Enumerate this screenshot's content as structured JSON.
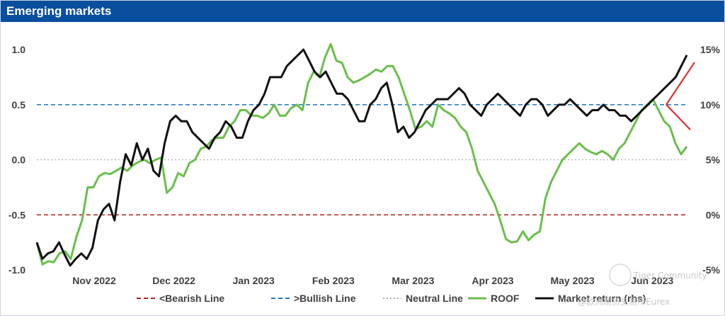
{
  "header": {
    "title": "Emerging markets"
  },
  "chart_data": {
    "type": "line",
    "title": "Emerging markets",
    "left_axis": {
      "ticks": [
        "1.0",
        "0.5",
        "0.0",
        "-0.5",
        "-1.0"
      ],
      "range": [
        -1.0,
        1.0
      ]
    },
    "right_axis": {
      "ticks": [
        "15%",
        "10%",
        "5%",
        "0%",
        "-5%"
      ],
      "range": [
        -5,
        15
      ]
    },
    "x_ticks": [
      "Nov 2022",
      "Dec 2022",
      "Jan 2023",
      "Feb 2023",
      "Mar 2023",
      "Apr 2023",
      "May 2023",
      "Jun 2023"
    ],
    "reference_lines": [
      {
        "name": "<Bearish Line",
        "value": -0.5,
        "color": "#b22222",
        "style": "dashed"
      },
      {
        "name": ">Bullish Line",
        "value": 0.5,
        "color": "#1f77c4",
        "style": "dashed"
      },
      {
        "name": "Neutral Line",
        "value": 0.0,
        "color": "#b0b0b0",
        "style": "dotted"
      }
    ],
    "series": [
      {
        "name": "ROOF",
        "axis": "left",
        "color": "#6abf4b",
        "values": [
          -0.75,
          -0.95,
          -0.92,
          -0.93,
          -0.85,
          -0.83,
          -0.9,
          -0.7,
          -0.55,
          -0.25,
          -0.25,
          -0.15,
          -0.12,
          -0.13,
          -0.1,
          -0.07,
          -0.1,
          -0.05,
          -0.02,
          0.0,
          -0.03,
          0.0,
          0.02,
          -0.3,
          -0.25,
          -0.12,
          -0.15,
          -0.03,
          0.0,
          0.1,
          0.12,
          0.18,
          0.2,
          0.2,
          0.3,
          0.35,
          0.45,
          0.45,
          0.4,
          0.4,
          0.38,
          0.42,
          0.5,
          0.4,
          0.4,
          0.47,
          0.5,
          0.45,
          0.7,
          0.8,
          0.75,
          0.93,
          1.05,
          0.9,
          0.88,
          0.75,
          0.7,
          0.72,
          0.75,
          0.78,
          0.82,
          0.8,
          0.85,
          0.85,
          0.75,
          0.6,
          0.45,
          0.28,
          0.3,
          0.35,
          0.3,
          0.5,
          0.45,
          0.42,
          0.38,
          0.3,
          0.25,
          0.1,
          -0.1,
          -0.2,
          -0.3,
          -0.4,
          -0.55,
          -0.72,
          -0.75,
          -0.74,
          -0.65,
          -0.73,
          -0.68,
          -0.65,
          -0.35,
          -0.2,
          -0.1,
          0.0,
          0.05,
          0.1,
          0.15,
          0.1,
          0.07,
          0.05,
          0.08,
          0.05,
          0.0,
          0.1,
          0.15,
          0.25,
          0.35,
          0.45,
          0.5,
          0.55,
          0.45,
          0.35,
          0.3,
          0.15,
          0.05,
          0.12
        ]
      },
      {
        "name": "Market return (rhs)",
        "axis": "right",
        "color": "#111111",
        "values": [
          -2.5,
          -4.0,
          -3.5,
          -3.3,
          -2.5,
          -3.6,
          -4.6,
          -4.0,
          -3.5,
          -4.0,
          -3.0,
          -0.5,
          0.5,
          1.0,
          -0.5,
          3.0,
          5.5,
          4.5,
          6.5,
          5.0,
          6.0,
          4.0,
          3.5,
          6.5,
          8.5,
          9.0,
          8.5,
          8.5,
          7.5,
          7.0,
          6.5,
          6.0,
          7.0,
          7.5,
          8.5,
          8.0,
          7.0,
          7.0,
          8.5,
          9.5,
          10.0,
          11.0,
          12.5,
          12.5,
          12.5,
          13.5,
          14.0,
          14.5,
          15.0,
          14.0,
          13.0,
          12.5,
          13.0,
          12.0,
          11.0,
          11.0,
          10.5,
          9.5,
          8.5,
          8.5,
          10.0,
          10.5,
          11.5,
          12.0,
          10.0,
          7.5,
          8.0,
          7.0,
          7.5,
          8.5,
          9.5,
          10.0,
          10.5,
          10.5,
          10.5,
          11.0,
          11.5,
          11.0,
          10.0,
          9.5,
          9.0,
          10.0,
          10.5,
          11.0,
          10.5,
          10.0,
          9.5,
          9.0,
          10.0,
          10.5,
          10.5,
          10.0,
          9.0,
          9.5,
          10.0,
          10.0,
          10.5,
          10.0,
          9.5,
          9.0,
          9.5,
          9.5,
          10.0,
          9.5,
          9.5,
          9.0,
          9.0,
          8.5,
          9.0,
          9.5,
          10.0,
          10.5,
          11.0,
          11.5,
          12.0,
          12.5,
          13.5,
          14.5
        ]
      }
    ],
    "annotations": [
      {
        "type": "red-arrow-forecast",
        "color": "#e03030"
      }
    ],
    "legend": {
      "position": "bottom",
      "entries": [
        {
          "label": "<Bearish Line",
          "color": "#b22222",
          "style": "dashed"
        },
        {
          "label": ">Bullish Line",
          "color": "#1f77c4",
          "style": "dashed"
        },
        {
          "label": "Neutral Line",
          "color": "#b0b0b0",
          "style": "dotted"
        },
        {
          "label": "ROOF",
          "color": "#6abf4b",
          "style": "solid"
        },
        {
          "label": "Market return (rhs)",
          "color": "#111111",
          "style": "solid"
        }
      ]
    }
  },
  "watermark": {
    "community": "Tiger Community",
    "source": "@欧洲期货交易所Eurex"
  }
}
